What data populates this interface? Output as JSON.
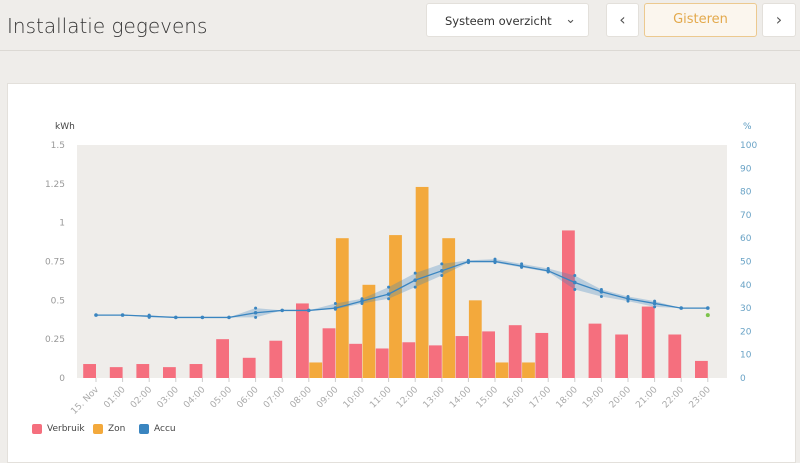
{
  "header": {
    "title": "Installatie gegevens",
    "view_select": "Systeem overzicht",
    "prev": "‹",
    "period": "Gisteren",
    "next": "›"
  },
  "colors": {
    "verbruik": "#f56f7e",
    "zon": "#f3a93c",
    "accu": "#3a85c0",
    "accu_end": "#7cc34a"
  },
  "chart_data": {
    "type": "bar",
    "categories": [
      "15. Nov",
      "01:00",
      "02:00",
      "03:00",
      "04:00",
      "05:00",
      "06:00",
      "07:00",
      "08:00",
      "09:00",
      "10:00",
      "11:00",
      "12:00",
      "13:00",
      "14:00",
      "15:00",
      "16:00",
      "17:00",
      "18:00",
      "19:00",
      "20:00",
      "21:00",
      "22:00",
      "23:00"
    ],
    "ylabel": "kWh",
    "y2label": "%",
    "ylim": [
      0,
      1.5
    ],
    "y2lim": [
      0,
      100
    ],
    "yticks": [
      "0",
      "0.25",
      "0.5",
      "0.75",
      "1",
      "1.25",
      "1.5"
    ],
    "y2ticks": [
      "0",
      "10",
      "20",
      "30",
      "40",
      "50",
      "60",
      "70",
      "80",
      "90",
      "100"
    ],
    "series": [
      {
        "name": "Verbruik",
        "type": "bar",
        "values": [
          0.09,
          0.07,
          0.09,
          0.07,
          0.09,
          0.25,
          0.13,
          0.24,
          0.48,
          0.32,
          0.22,
          0.19,
          0.23,
          0.21,
          0.27,
          0.3,
          0.34,
          0.29,
          0.95,
          0.35,
          0.28,
          0.46,
          0.28,
          0.11
        ]
      },
      {
        "name": "Zon",
        "type": "bar",
        "values": [
          0,
          0,
          0,
          0,
          0,
          0,
          0,
          0,
          0.1,
          0.9,
          0.6,
          0.92,
          1.23,
          0.9,
          0.5,
          0.1,
          0.1,
          0,
          0,
          0,
          0,
          0,
          0,
          0
        ]
      },
      {
        "name": "Accu",
        "type": "line",
        "axis": "y2",
        "values": [
          27,
          27,
          26.5,
          26,
          26,
          26,
          28,
          29,
          29,
          30,
          33,
          36,
          42,
          46,
          50,
          50,
          48,
          46,
          41,
          37,
          34,
          32,
          30,
          30
        ],
        "min": [
          27,
          27,
          26,
          26,
          26,
          26,
          26,
          29,
          29,
          29.5,
          32,
          34,
          39,
          44,
          49.5,
          49.5,
          47.5,
          45.5,
          38,
          35,
          33,
          30.5,
          30,
          30
        ],
        "max": [
          27,
          27,
          27,
          26,
          26,
          26,
          30,
          29,
          29,
          32,
          34,
          39,
          45,
          49,
          50.5,
          51,
          49,
          47,
          44,
          38,
          35,
          33,
          30,
          30
        ],
        "end_marker": 27
      }
    ],
    "legend": [
      "Verbruik",
      "Zon",
      "Accu"
    ]
  }
}
